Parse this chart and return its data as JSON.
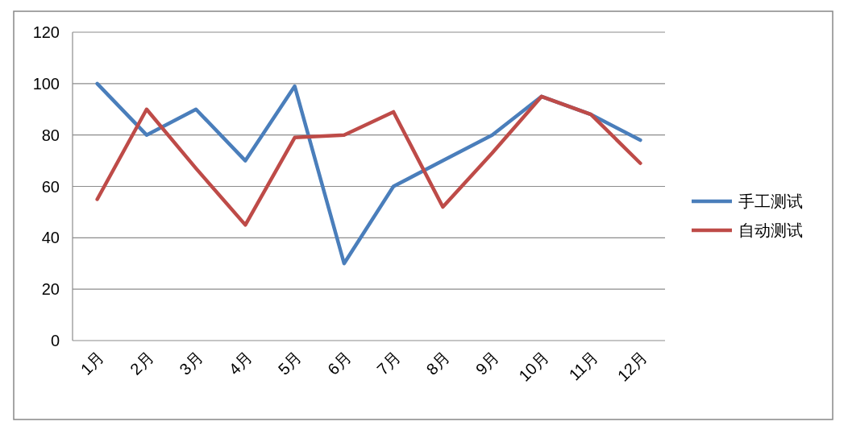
{
  "chart_data": {
    "type": "line",
    "categories": [
      "1月",
      "2月",
      "3月",
      "4月",
      "5月",
      "6月",
      "7月",
      "8月",
      "9月",
      "10月",
      "11月",
      "12月"
    ],
    "series": [
      {
        "name": "手工测试",
        "color": "#4a7ebb",
        "values": [
          100,
          80,
          90,
          70,
          99,
          30,
          60,
          70,
          80,
          95,
          88,
          78
        ]
      },
      {
        "name": "自动测试",
        "color": "#be4b48",
        "values": [
          55,
          90,
          67,
          45,
          79,
          80,
          89,
          52,
          73,
          95,
          88,
          69
        ]
      }
    ],
    "ylim": [
      0,
      120
    ],
    "yticks": [
      0,
      20,
      40,
      60,
      80,
      100,
      120
    ],
    "grid": "y",
    "legend": "right",
    "marker": "none",
    "line_style": "solid"
  }
}
